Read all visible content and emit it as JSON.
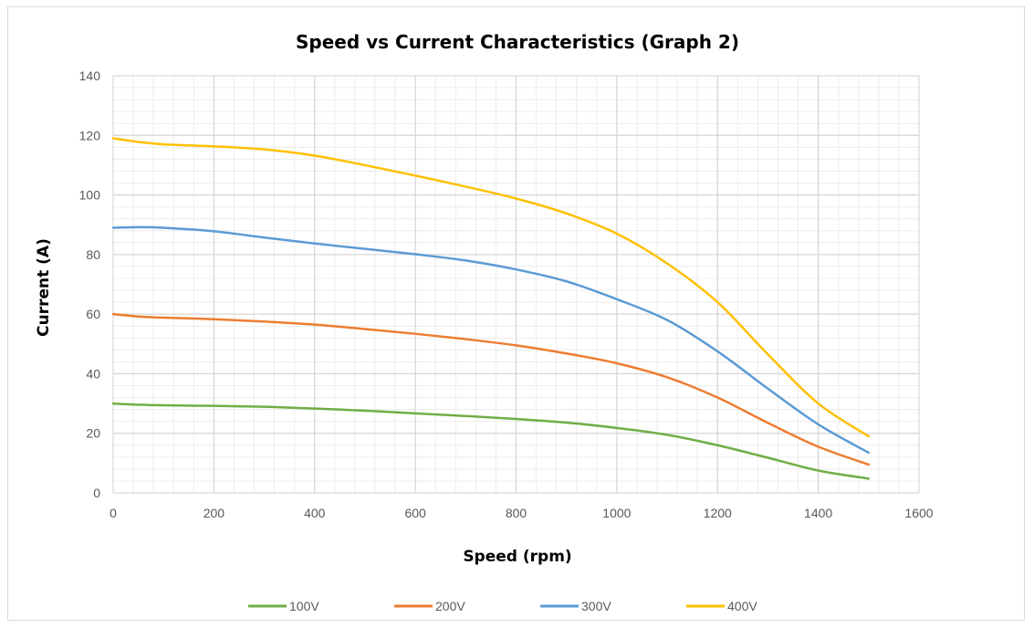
{
  "chart_data": {
    "type": "line",
    "title": "Speed vs Current Characteristics (Graph 2)",
    "xlabel": "Speed (rpm)",
    "ylabel": "Current (A)",
    "xlim": [
      0,
      1600
    ],
    "ylim": [
      0,
      140
    ],
    "xticks": [
      0,
      200,
      400,
      600,
      800,
      1000,
      1200,
      1400,
      1600
    ],
    "yticks": [
      0,
      20,
      40,
      60,
      80,
      100,
      120,
      140
    ],
    "grid": true,
    "legend_position": "bottom",
    "x": [
      0,
      50,
      100,
      200,
      300,
      400,
      500,
      600,
      700,
      800,
      900,
      1000,
      1100,
      1200,
      1300,
      1400,
      1500
    ],
    "series": [
      {
        "name": "100V",
        "color": "#70ad47",
        "values": [
          30,
          29.6,
          29.4,
          29.2,
          28.9,
          28.3,
          27.6,
          26.7,
          25.8,
          24.8,
          23.6,
          21.8,
          19.5,
          16,
          11.8,
          7.5,
          4.8
        ]
      },
      {
        "name": "200V",
        "color": "#ed7d31",
        "values": [
          60,
          59.2,
          58.8,
          58.3,
          57.5,
          56.5,
          55,
          53.4,
          51.6,
          49.5,
          46.8,
          43.5,
          38.8,
          32,
          23.5,
          15.5,
          9.5
        ]
      },
      {
        "name": "300V",
        "color": "#5b9bd5",
        "values": [
          89,
          89.2,
          89,
          87.8,
          85.7,
          83.7,
          81.9,
          80.1,
          78,
          75,
          71,
          65,
          58,
          47.5,
          35,
          23,
          13.5
        ]
      },
      {
        "name": "400V",
        "color": "#ffc000",
        "values": [
          119,
          117.8,
          117,
          116.3,
          115.3,
          113.2,
          110,
          106.5,
          102.8,
          98.8,
          93.8,
          87,
          77,
          64,
          46.5,
          30,
          19
        ]
      }
    ]
  }
}
